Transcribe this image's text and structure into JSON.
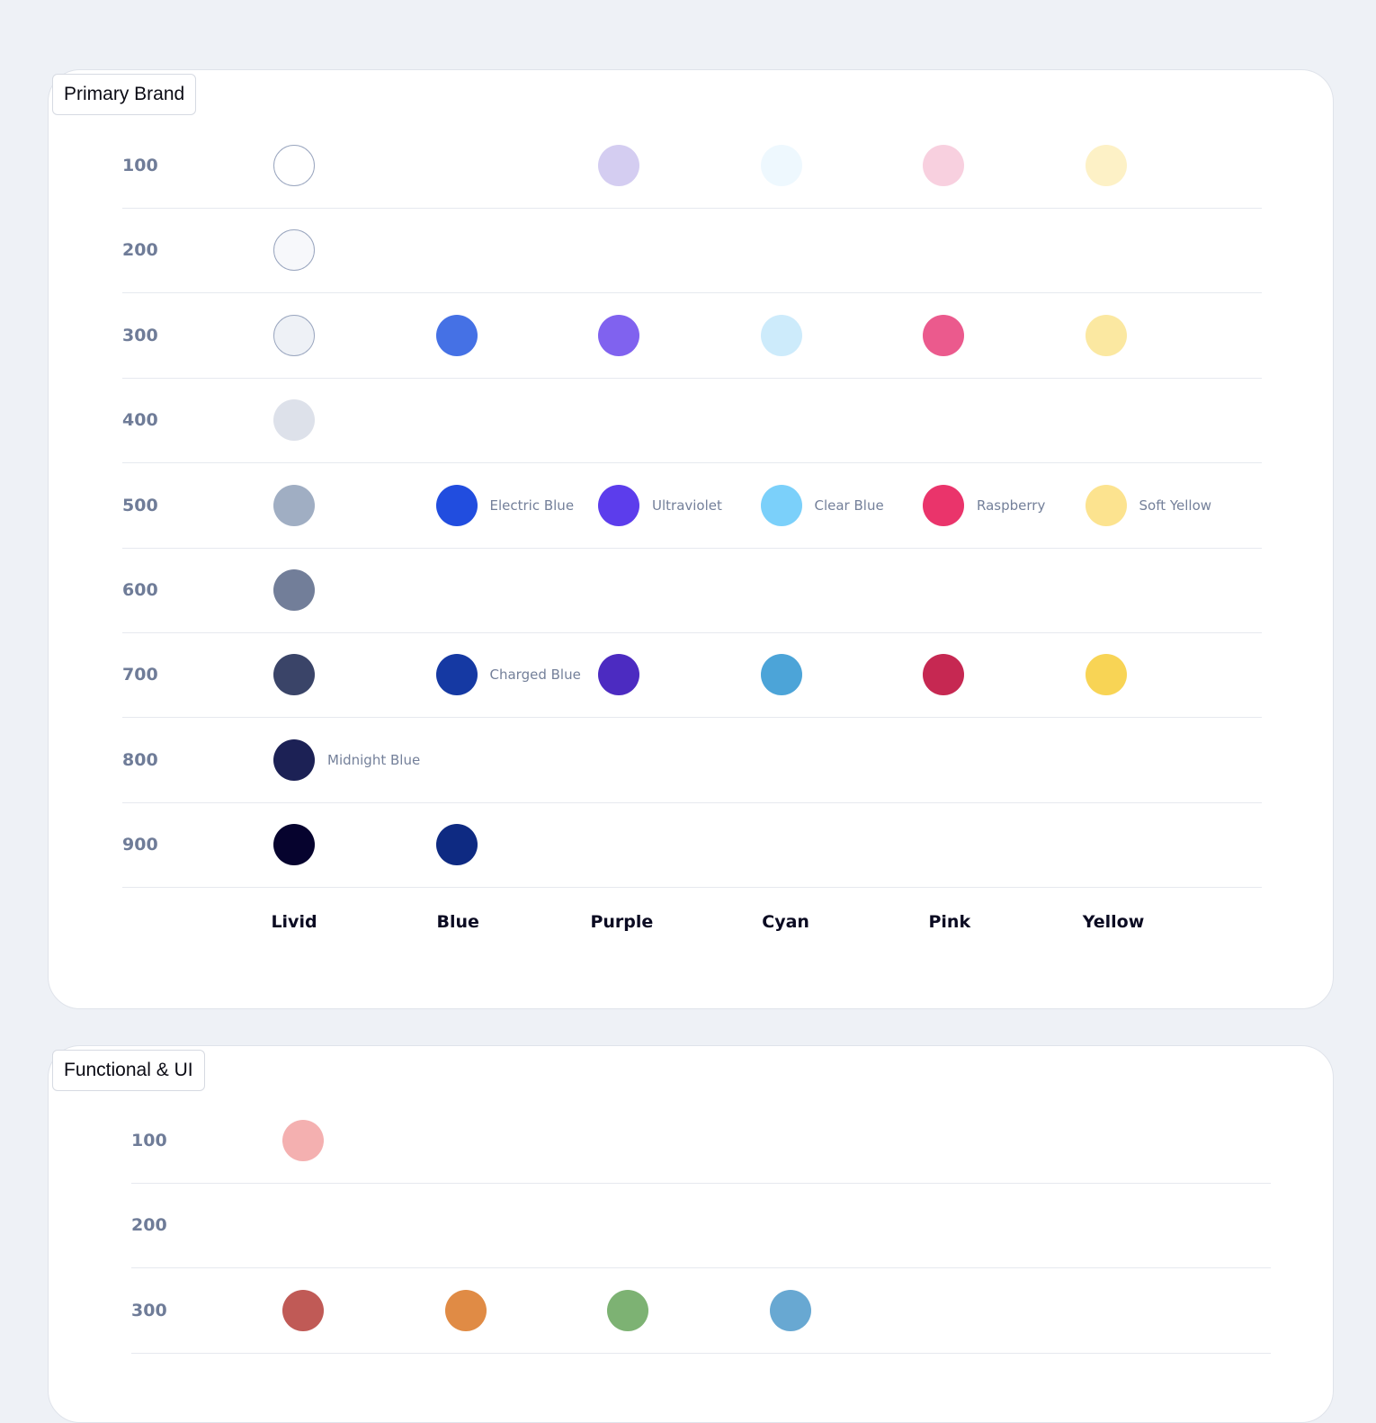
{
  "primary": {
    "title": "Primary Brand",
    "rows": [
      {
        "label": "100",
        "swatches": [
          {
            "col": 0,
            "color": "#ffffff",
            "outlined": true
          },
          {
            "col": 2,
            "color": "#d4cdf1"
          },
          {
            "col": 3,
            "color": "#eef8fe"
          },
          {
            "col": 4,
            "color": "#f8d0df"
          },
          {
            "col": 5,
            "color": "#fdf1c6"
          }
        ]
      },
      {
        "label": "200",
        "swatches": [
          {
            "col": 0,
            "color": "#f7f8fb",
            "outlined": true
          }
        ]
      },
      {
        "label": "300",
        "swatches": [
          {
            "col": 0,
            "color": "#eef1f6",
            "outlined": true
          },
          {
            "col": 1,
            "color": "#4571e5"
          },
          {
            "col": 2,
            "color": "#8062ef"
          },
          {
            "col": 3,
            "color": "#cdebfb"
          },
          {
            "col": 4,
            "color": "#eb5a8d"
          },
          {
            "col": 5,
            "color": "#fbe8a1"
          }
        ]
      },
      {
        "label": "400",
        "swatches": [
          {
            "col": 0,
            "color": "#dde1ea"
          }
        ]
      },
      {
        "label": "500",
        "swatches": [
          {
            "col": 0,
            "color": "#a0aec3"
          },
          {
            "col": 1,
            "color": "#214ddf",
            "name": "Electric Blue"
          },
          {
            "col": 2,
            "color": "#5c3dec",
            "name": "Ultraviolet"
          },
          {
            "col": 3,
            "color": "#7bd0fa",
            "name": "Clear Blue"
          },
          {
            "col": 4,
            "color": "#ea346b",
            "name": "Raspberry"
          },
          {
            "col": 5,
            "color": "#fce38f",
            "name": "Soft Yellow"
          }
        ]
      },
      {
        "label": "600",
        "swatches": [
          {
            "col": 0,
            "color": "#727e99"
          }
        ]
      },
      {
        "label": "700",
        "swatches": [
          {
            "col": 0,
            "color": "#3a4468"
          },
          {
            "col": 1,
            "color": "#1539a3",
            "name": "Charged Blue"
          },
          {
            "col": 2,
            "color": "#4c2bc1"
          },
          {
            "col": 3,
            "color": "#4ca4d8"
          },
          {
            "col": 4,
            "color": "#c62852"
          },
          {
            "col": 5,
            "color": "#f8d455"
          }
        ]
      },
      {
        "label": "800",
        "swatches": [
          {
            "col": 0,
            "color": "#1c2155",
            "name": "Midnight Blue"
          }
        ]
      },
      {
        "label": "900",
        "swatches": [
          {
            "col": 0,
            "color": "#06032e"
          },
          {
            "col": 1,
            "color": "#0e2a82"
          }
        ]
      }
    ],
    "columns": [
      "Livid",
      "Blue",
      "Purple",
      "Cyan",
      "Pink",
      "Yellow"
    ]
  },
  "functional": {
    "title": "Functional & UI",
    "rows": [
      {
        "label": "100",
        "swatches": [
          {
            "col": 0,
            "color": "#f4b0b0"
          }
        ]
      },
      {
        "label": "200",
        "swatches": []
      },
      {
        "label": "300",
        "swatches": [
          {
            "col": 0,
            "color": "#c05a56"
          },
          {
            "col": 1,
            "color": "#e08b45"
          },
          {
            "col": 2,
            "color": "#7db273"
          },
          {
            "col": 3,
            "color": "#68a8d2"
          }
        ]
      }
    ]
  }
}
